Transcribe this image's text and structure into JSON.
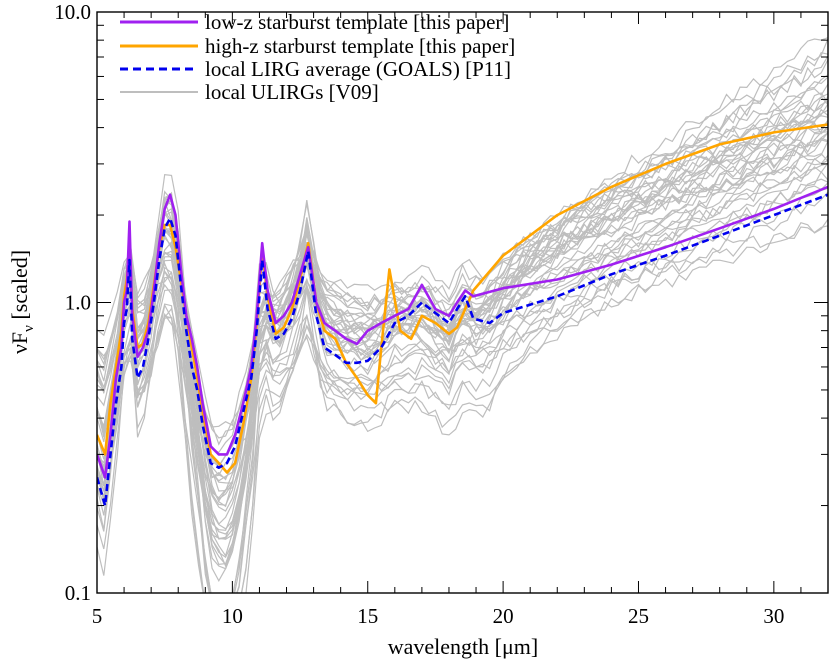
{
  "chart_data": {
    "type": "line",
    "title": "",
    "xlabel": "wavelength [μm]",
    "ylabel_main": "νF",
    "ylabel_sub": "ν",
    "ylabel_tail": " [scaled]",
    "xlim": [
      5,
      32
    ],
    "ylim": [
      0.1,
      10.0
    ],
    "yscale": "log",
    "grid": false,
    "legend_position": "top-left",
    "x_ticks": [
      5,
      10,
      15,
      20,
      25,
      30
    ],
    "x_tick_labels": [
      "5",
      "10",
      "15",
      "20",
      "25",
      "30"
    ],
    "y_ticks": [
      0.1,
      1.0,
      10.0
    ],
    "y_tick_labels": [
      "0.1",
      "1.0",
      "10.0"
    ],
    "colors": {
      "low_z": "#a020f0",
      "high_z": "#ffa500",
      "lirg": "#0000ee",
      "ulirg": "#bebebe"
    },
    "series": [
      {
        "name": "low-z starburst template [this paper]",
        "key": "low_z",
        "x": [
          5.0,
          5.3,
          5.5,
          5.7,
          5.9,
          6.0,
          6.1,
          6.2,
          6.3,
          6.5,
          6.7,
          6.9,
          7.1,
          7.3,
          7.5,
          7.7,
          7.9,
          8.1,
          8.3,
          8.5,
          8.7,
          8.9,
          9.2,
          9.5,
          9.8,
          10.1,
          10.4,
          10.7,
          10.9,
          11.1,
          11.3,
          11.6,
          11.9,
          12.2,
          12.5,
          12.8,
          13.1,
          13.4,
          13.8,
          14.2,
          14.6,
          15.0,
          15.5,
          16.0,
          16.5,
          17.0,
          17.5,
          18.0,
          18.3,
          18.6,
          18.9,
          20.0,
          22.0,
          24.0,
          26.0,
          28.0,
          30.0,
          32.0
        ],
        "y": [
          0.3,
          0.25,
          0.35,
          0.55,
          0.7,
          1.0,
          1.1,
          1.9,
          0.9,
          0.65,
          0.7,
          0.8,
          1.1,
          1.6,
          2.1,
          2.35,
          2.0,
          1.3,
          0.9,
          0.75,
          0.6,
          0.45,
          0.32,
          0.3,
          0.3,
          0.35,
          0.45,
          0.6,
          0.9,
          1.6,
          1.1,
          0.85,
          0.9,
          1.0,
          1.25,
          1.55,
          1.0,
          0.85,
          0.8,
          0.75,
          0.72,
          0.8,
          0.85,
          0.9,
          0.95,
          1.15,
          0.95,
          0.9,
          1.0,
          1.1,
          1.05,
          1.12,
          1.2,
          1.35,
          1.55,
          1.8,
          2.1,
          2.5
        ]
      },
      {
        "name": "high-z starburst template [this paper]",
        "key": "high_z",
        "x": [
          5.0,
          5.3,
          5.5,
          5.7,
          5.9,
          6.0,
          6.1,
          6.2,
          6.3,
          6.5,
          6.7,
          6.9,
          7.1,
          7.3,
          7.5,
          7.7,
          7.9,
          8.1,
          8.3,
          8.5,
          8.7,
          8.9,
          9.2,
          9.5,
          9.8,
          10.1,
          10.4,
          10.7,
          10.9,
          11.1,
          11.3,
          11.6,
          11.9,
          12.2,
          12.5,
          12.8,
          13.1,
          13.4,
          13.8,
          14.2,
          14.6,
          15.0,
          15.3,
          15.5,
          15.8,
          16.2,
          16.6,
          17.0,
          17.5,
          18.0,
          18.3,
          18.6,
          18.9,
          20.0,
          22.0,
          24.0,
          26.0,
          28.0,
          30.0,
          32.0
        ],
        "y": [
          0.35,
          0.3,
          0.45,
          0.6,
          0.8,
          1.05,
          1.2,
          1.6,
          0.95,
          0.7,
          0.72,
          0.85,
          1.15,
          1.55,
          1.85,
          1.85,
          1.55,
          1.2,
          0.9,
          0.7,
          0.55,
          0.42,
          0.3,
          0.28,
          0.26,
          0.28,
          0.38,
          0.55,
          0.85,
          1.5,
          1.05,
          0.78,
          0.82,
          0.95,
          1.2,
          1.6,
          1.0,
          0.8,
          0.75,
          0.62,
          0.55,
          0.48,
          0.45,
          0.7,
          1.3,
          0.8,
          0.75,
          0.9,
          0.85,
          0.78,
          0.82,
          0.95,
          1.1,
          1.45,
          2.0,
          2.5,
          3.0,
          3.5,
          3.85,
          4.1
        ]
      },
      {
        "name": "local LIRG average (GOALS) [P11]",
        "key": "lirg",
        "x": [
          5.0,
          5.3,
          5.5,
          5.7,
          5.9,
          6.0,
          6.1,
          6.2,
          6.3,
          6.5,
          6.7,
          6.9,
          7.1,
          7.3,
          7.5,
          7.7,
          7.9,
          8.1,
          8.3,
          8.5,
          8.7,
          8.9,
          9.2,
          9.5,
          9.8,
          10.1,
          10.4,
          10.7,
          10.9,
          11.1,
          11.3,
          11.6,
          11.9,
          12.2,
          12.5,
          12.8,
          13.1,
          13.4,
          13.8,
          14.2,
          14.6,
          15.0,
          15.5,
          16.0,
          16.5,
          17.0,
          17.5,
          18.0,
          18.3,
          18.6,
          18.9,
          19.5,
          20.0,
          22.0,
          24.0,
          26.0,
          28.0,
          30.0,
          32.0
        ],
        "y": [
          0.25,
          0.2,
          0.3,
          0.45,
          0.6,
          0.85,
          0.95,
          1.4,
          0.75,
          0.55,
          0.6,
          0.75,
          1.0,
          1.4,
          1.8,
          1.95,
          1.7,
          1.15,
          0.8,
          0.6,
          0.5,
          0.38,
          0.28,
          0.27,
          0.28,
          0.32,
          0.42,
          0.55,
          0.8,
          1.4,
          0.95,
          0.75,
          0.78,
          0.88,
          1.1,
          1.5,
          0.9,
          0.7,
          0.66,
          0.62,
          0.62,
          0.63,
          0.7,
          0.85,
          0.9,
          1.0,
          0.92,
          0.85,
          0.95,
          1.05,
          0.88,
          0.85,
          0.92,
          1.05,
          1.25,
          1.45,
          1.7,
          2.0,
          2.35
        ]
      }
    ],
    "background_family": {
      "name": "local ULIRGs [V09]",
      "key": "ulirg",
      "count": 40
    }
  }
}
